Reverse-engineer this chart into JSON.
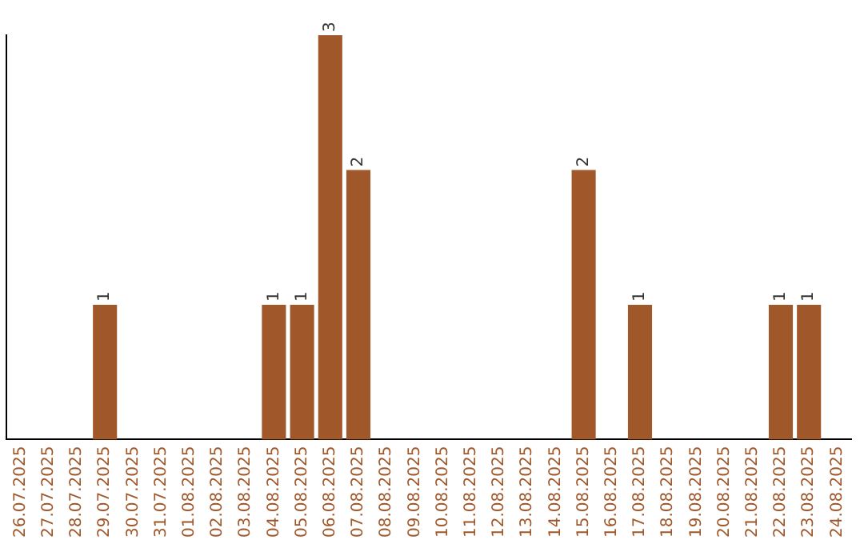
{
  "chart_data": {
    "type": "bar",
    "categories": [
      "26.07.2025",
      "27.07.2025",
      "28.07.2025",
      "29.07.2025",
      "30.07.2025",
      "31.07.2025",
      "01.08.2025",
      "02.08.2025",
      "03.08.2025",
      "04.08.2025",
      "05.08.2025",
      "06.08.2025",
      "07.08.2025",
      "08.08.2025",
      "09.08.2025",
      "10.08.2025",
      "11.08.2025",
      "12.08.2025",
      "13.08.2025",
      "14.08.2025",
      "15.08.2025",
      "16.08.2025",
      "17.08.2025",
      "18.08.2025",
      "19.08.2025",
      "20.08.2025",
      "21.08.2025",
      "22.08.2025",
      "23.08.2025",
      "24.08.2025"
    ],
    "values": [
      0,
      0,
      0,
      1,
      0,
      0,
      0,
      0,
      0,
      1,
      1,
      3,
      2,
      0,
      0,
      0,
      0,
      0,
      0,
      0,
      2,
      0,
      1,
      0,
      0,
      0,
      0,
      1,
      1,
      0
    ],
    "value_labels": [
      null,
      null,
      null,
      "1",
      null,
      null,
      null,
      null,
      null,
      "1",
      "1",
      "3",
      "2",
      null,
      null,
      null,
      null,
      null,
      null,
      null,
      "2",
      null,
      "1",
      null,
      null,
      null,
      null,
      "1",
      "1",
      null
    ],
    "color": "#a0582a",
    "grid": false,
    "legend": false,
    "tick_labels": "x"
  }
}
